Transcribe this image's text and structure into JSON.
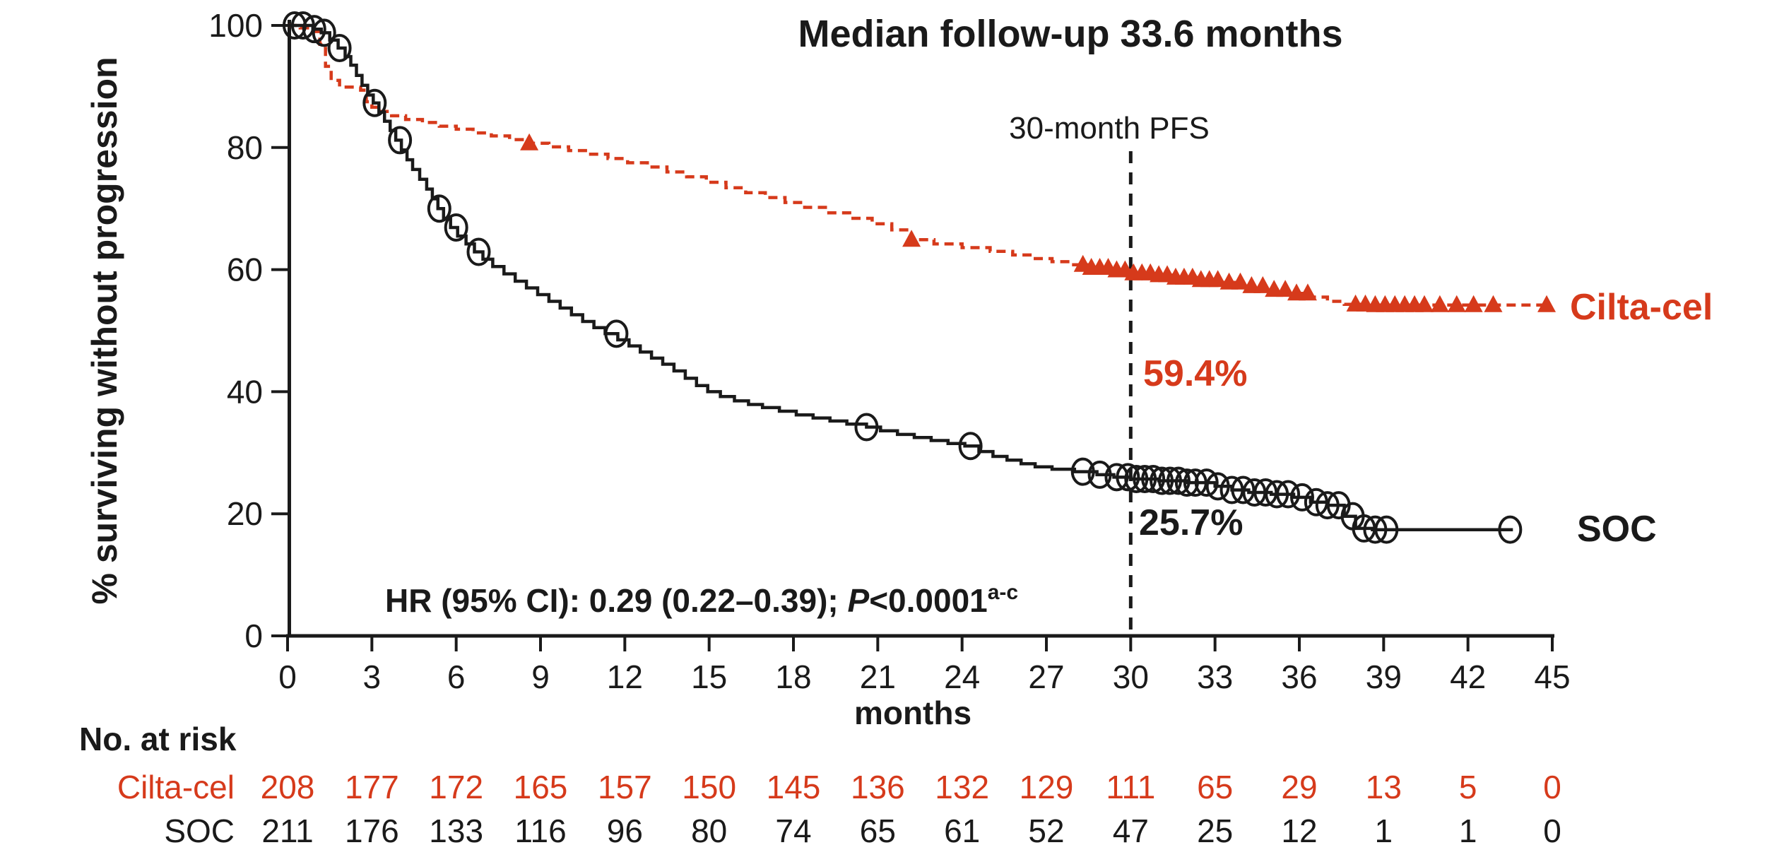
{
  "chart_data": {
    "type": "line",
    "subtype": "kaplan-meier-step",
    "title": "Median follow-up 33.6 months",
    "xlabel": "months",
    "ylabel": "% surviving without progression",
    "xlim": [
      0,
      45
    ],
    "ylim": [
      0,
      100
    ],
    "xticks": [
      0,
      3,
      6,
      9,
      12,
      15,
      18,
      21,
      24,
      27,
      30,
      33,
      36,
      39,
      42,
      45
    ],
    "yticks": [
      0,
      20,
      40,
      60,
      80,
      100
    ],
    "grid": false,
    "legend_position": "end-of-curve-labels",
    "colors": {
      "ciltacel": "#d63a1b",
      "soc": "#1a1a1a",
      "axis": "#1a1a1a"
    },
    "annotations": {
      "title": "Median follow-up 33.6 months",
      "landmark_label": "30-month PFS",
      "landmark_line_month": 30,
      "ciltacel_30mo_pfs": "59.4%",
      "soc_30mo_pfs": "25.7%",
      "hr_prefix": "HR (95% CI): 0.29 (0.22–0.39); ",
      "hr_p": "P",
      "hr_value": "<0.0001",
      "hr_superscript": "a-c",
      "xlabel": "months",
      "ylabel": "% surviving without progression"
    },
    "series": [
      {
        "name": "Cilta-cel",
        "end_label": "Cilta-cel",
        "color": "#d63a1b",
        "line_style": "dashed",
        "marker": "triangle",
        "points": [
          [
            0,
            100
          ],
          [
            0.45,
            99.6
          ],
          [
            0.9,
            99.0
          ],
          [
            1.15,
            96.9
          ],
          [
            1.35,
            93.3
          ],
          [
            1.55,
            91.0
          ],
          [
            1.85,
            89.9
          ],
          [
            2.6,
            89.4
          ],
          [
            2.8,
            87.5
          ],
          [
            3.0,
            86.6
          ],
          [
            3.3,
            85.9
          ],
          [
            3.7,
            85.2
          ],
          [
            4.2,
            84.6
          ],
          [
            4.8,
            84.1
          ],
          [
            5.4,
            83.5
          ],
          [
            6.0,
            83.0
          ],
          [
            6.6,
            82.4
          ],
          [
            7.25,
            81.9
          ],
          [
            7.9,
            81.3
          ],
          [
            8.6,
            80.7
          ],
          [
            9.3,
            80.1
          ],
          [
            10.0,
            79.5
          ],
          [
            10.7,
            78.9
          ],
          [
            11.4,
            78.2
          ],
          [
            12.1,
            77.5
          ],
          [
            12.8,
            76.8
          ],
          [
            13.5,
            76.0
          ],
          [
            14.2,
            75.2
          ],
          [
            14.9,
            74.3
          ],
          [
            15.6,
            73.4
          ],
          [
            16.3,
            72.6
          ],
          [
            17.0,
            71.8
          ],
          [
            17.7,
            71.0
          ],
          [
            18.4,
            70.2
          ],
          [
            19.2,
            69.3
          ],
          [
            20.0,
            68.4
          ],
          [
            20.8,
            67.5
          ],
          [
            21.5,
            66.5
          ],
          [
            22.2,
            64.9
          ],
          [
            23.0,
            64.2
          ],
          [
            24.0,
            63.6
          ],
          [
            25.0,
            63.0
          ],
          [
            25.8,
            62.4
          ],
          [
            26.5,
            61.8
          ],
          [
            27.2,
            61.3
          ],
          [
            27.9,
            60.8
          ],
          [
            28.6,
            60.3
          ],
          [
            29.3,
            59.9
          ],
          [
            30.0,
            59.4
          ],
          [
            30.8,
            59.1
          ],
          [
            31.6,
            58.7
          ],
          [
            32.4,
            58.3
          ],
          [
            33.2,
            57.9
          ],
          [
            34.0,
            57.3
          ],
          [
            34.8,
            56.7
          ],
          [
            35.6,
            56.1
          ],
          [
            36.4,
            55.5
          ],
          [
            37.0,
            54.8
          ],
          [
            37.6,
            54.3
          ],
          [
            38.4,
            54.2
          ],
          [
            44.9,
            54.2
          ]
        ],
        "censor_marks_months": [
          8.6,
          22.2,
          28.3,
          28.6,
          28.9,
          29.2,
          29.5,
          29.8,
          30.1,
          30.4,
          30.7,
          31.0,
          31.3,
          31.6,
          31.9,
          32.2,
          32.5,
          32.8,
          33.1,
          33.5,
          33.9,
          34.3,
          34.7,
          35.1,
          35.5,
          35.9,
          36.3,
          38.0,
          38.35,
          38.7,
          39.05,
          39.4,
          39.75,
          40.1,
          40.45,
          41.0,
          41.6,
          42.2,
          42.9,
          44.8
        ]
      },
      {
        "name": "SOC",
        "end_label": "SOC",
        "color": "#1a1a1a",
        "line_style": "solid",
        "marker": "circle",
        "points": [
          [
            0,
            100
          ],
          [
            0.9,
            99.4
          ],
          [
            1.2,
            98.8
          ],
          [
            1.5,
            97.6
          ],
          [
            1.8,
            96.3
          ],
          [
            2.05,
            94.9
          ],
          [
            2.25,
            93.5
          ],
          [
            2.45,
            91.8
          ],
          [
            2.65,
            90.2
          ],
          [
            2.85,
            88.6
          ],
          [
            3.05,
            87.3
          ],
          [
            3.25,
            85.8
          ],
          [
            3.45,
            84.3
          ],
          [
            3.65,
            82.8
          ],
          [
            3.85,
            81.2
          ],
          [
            4.05,
            79.6
          ],
          [
            4.25,
            78.0
          ],
          [
            4.45,
            76.4
          ],
          [
            4.7,
            74.8
          ],
          [
            4.95,
            73.2
          ],
          [
            5.15,
            71.6
          ],
          [
            5.35,
            70.0
          ],
          [
            5.55,
            68.4
          ],
          [
            5.8,
            66.9
          ],
          [
            6.05,
            65.5
          ],
          [
            6.35,
            64.2
          ],
          [
            6.65,
            62.9
          ],
          [
            6.95,
            61.7
          ],
          [
            7.3,
            60.5
          ],
          [
            7.7,
            59.3
          ],
          [
            8.1,
            58.1
          ],
          [
            8.5,
            57.0
          ],
          [
            8.9,
            55.9
          ],
          [
            9.3,
            54.8
          ],
          [
            9.7,
            53.7
          ],
          [
            10.1,
            52.6
          ],
          [
            10.5,
            51.5
          ],
          [
            10.9,
            50.5
          ],
          [
            11.3,
            49.5
          ],
          [
            11.75,
            48.5
          ],
          [
            12.15,
            47.5
          ],
          [
            12.55,
            46.5
          ],
          [
            12.95,
            45.5
          ],
          [
            13.35,
            44.5
          ],
          [
            13.75,
            43.4
          ],
          [
            14.15,
            42.2
          ],
          [
            14.55,
            41.0
          ],
          [
            14.95,
            40.0
          ],
          [
            15.4,
            39.2
          ],
          [
            15.9,
            38.5
          ],
          [
            16.4,
            37.9
          ],
          [
            16.9,
            37.4
          ],
          [
            17.5,
            36.8
          ],
          [
            18.1,
            36.2
          ],
          [
            18.7,
            35.7
          ],
          [
            19.3,
            35.2
          ],
          [
            19.9,
            34.7
          ],
          [
            20.6,
            34.2
          ],
          [
            21.1,
            33.6
          ],
          [
            21.7,
            33.0
          ],
          [
            22.3,
            32.5
          ],
          [
            22.9,
            32.0
          ],
          [
            23.5,
            31.5
          ],
          [
            24.1,
            31.1
          ],
          [
            24.6,
            30.2
          ],
          [
            25.1,
            29.4
          ],
          [
            25.6,
            28.8
          ],
          [
            26.1,
            28.2
          ],
          [
            26.6,
            27.7
          ],
          [
            27.2,
            27.3
          ],
          [
            28.0,
            26.9
          ],
          [
            28.8,
            26.4
          ],
          [
            29.4,
            26.0
          ],
          [
            30.0,
            25.7
          ],
          [
            31.0,
            25.4
          ],
          [
            32.0,
            25.1
          ],
          [
            33.0,
            24.5
          ],
          [
            33.6,
            23.9
          ],
          [
            34.2,
            23.5
          ],
          [
            35.0,
            23.2
          ],
          [
            35.8,
            22.7
          ],
          [
            36.4,
            21.9
          ],
          [
            37.0,
            21.4
          ],
          [
            37.6,
            19.6
          ],
          [
            38.0,
            17.6
          ],
          [
            38.6,
            17.4
          ],
          [
            43.6,
            17.4
          ]
        ],
        "censor_marks_months": [
          0.25,
          0.55,
          0.95,
          1.3,
          1.85,
          3.1,
          4.0,
          5.4,
          6.0,
          6.8,
          11.7,
          20.6,
          24.3,
          28.3,
          28.9,
          29.5,
          29.9,
          30.2,
          30.5,
          30.8,
          31.1,
          31.4,
          31.7,
          32.0,
          32.3,
          32.7,
          33.1,
          33.6,
          34.0,
          34.4,
          34.8,
          35.2,
          35.6,
          36.1,
          36.6,
          37.0,
          37.4,
          37.9,
          38.3,
          38.7,
          39.1,
          43.5
        ]
      }
    ],
    "at_risk": {
      "header": "No. at risk",
      "months": [
        0,
        3,
        6,
        9,
        12,
        15,
        18,
        21,
        24,
        27,
        30,
        33,
        36,
        39,
        42,
        45
      ],
      "rows": [
        {
          "name": "Cilta-cel",
          "color": "#d63a1b",
          "values": [
            208,
            177,
            172,
            165,
            157,
            150,
            145,
            136,
            132,
            129,
            111,
            65,
            29,
            13,
            5,
            0
          ]
        },
        {
          "name": "SOC",
          "color": "#1a1a1a",
          "values": [
            211,
            176,
            133,
            116,
            96,
            80,
            74,
            65,
            61,
            52,
            47,
            25,
            12,
            1,
            1,
            0
          ]
        }
      ]
    }
  }
}
